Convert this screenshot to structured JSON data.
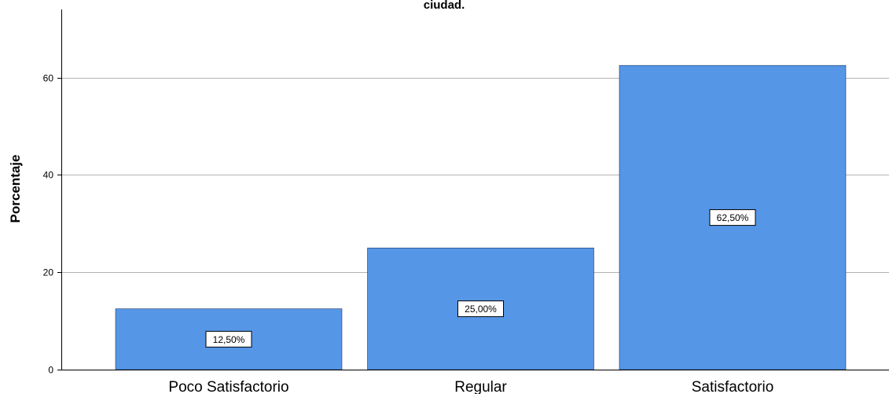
{
  "chart_data": {
    "type": "bar",
    "title": "ciudad.",
    "ylabel": "Porcentaje",
    "xlabel": "",
    "categories": [
      "Poco Satisfactorio",
      "Regular",
      "Satisfactorio"
    ],
    "values": [
      12.5,
      25.0,
      62.5
    ],
    "data_labels": [
      "12,50%",
      "25,00%",
      "62,50%"
    ],
    "ylim": [
      0,
      74
    ],
    "yticks": [
      0,
      20,
      40,
      60
    ],
    "ytick_labels": [
      "0",
      "20",
      "40",
      "60"
    ],
    "grid": true,
    "bar_color": "#5596e6",
    "grid_color": "#b3b3b3"
  }
}
